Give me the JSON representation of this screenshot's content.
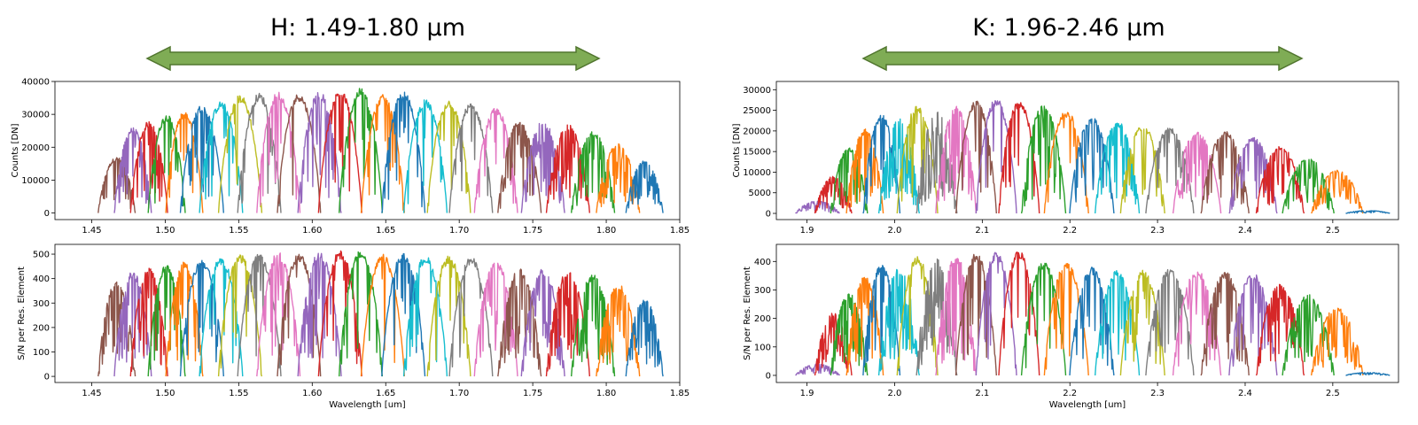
{
  "band_labels": {
    "h": "H: 1.49-1.80 µm",
    "k": "K: 1.96-2.46 µm"
  },
  "colors": {
    "arrow_fill": "#7fac55",
    "arrow_stroke": "#51762f",
    "palette": [
      "#1f77b4",
      "#ff7f0e",
      "#2ca02c",
      "#d62728",
      "#9467bd",
      "#8c564b",
      "#e377c2",
      "#7f7f7f",
      "#bcbd22",
      "#17becf"
    ]
  },
  "chart_data": [
    {
      "id": "h_counts",
      "type": "line",
      "xlabel": "",
      "ylabel": "Counts [DN]",
      "xlim": [
        1.425,
        1.85
      ],
      "ylim": [
        -2000,
        40000
      ],
      "xticks": [
        "1.45",
        "1.50",
        "1.55",
        "1.60",
        "1.65",
        "1.70",
        "1.75",
        "1.80",
        "1.85"
      ],
      "yticks": [
        "0",
        "10000",
        "20000",
        "30000",
        "40000"
      ],
      "orders": [
        {
          "center": 1.467,
          "half_width": 0.006,
          "peak": 17000,
          "color_index": 5,
          "noise": 0.35
        },
        {
          "center": 1.478,
          "half_width": 0.006,
          "peak": 26000,
          "color_index": 4,
          "noise": 0.3
        },
        {
          "center": 1.489,
          "half_width": 0.006,
          "peak": 28000,
          "color_index": 3,
          "noise": 0.25
        },
        {
          "center": 1.501,
          "half_width": 0.006,
          "peak": 30000,
          "color_index": 2,
          "noise": 0.2
        },
        {
          "center": 1.513,
          "half_width": 0.006,
          "peak": 31000,
          "color_index": 1,
          "noise": 0.2
        },
        {
          "center": 1.525,
          "half_width": 0.007,
          "peak": 33000,
          "color_index": 0,
          "noise": 0.15
        },
        {
          "center": 1.538,
          "half_width": 0.007,
          "peak": 34000,
          "color_index": 9,
          "noise": 0.12
        },
        {
          "center": 1.551,
          "half_width": 0.007,
          "peak": 36000,
          "color_index": 8,
          "noise": 0.1
        },
        {
          "center": 1.564,
          "half_width": 0.007,
          "peak": 36500,
          "color_index": 7,
          "noise": 0.1
        },
        {
          "center": 1.577,
          "half_width": 0.007,
          "peak": 37000,
          "color_index": 6,
          "noise": 0.25
        },
        {
          "center": 1.591,
          "half_width": 0.007,
          "peak": 36500,
          "color_index": 5,
          "noise": 0.1
        },
        {
          "center": 1.605,
          "half_width": 0.007,
          "peak": 37000,
          "color_index": 4,
          "noise": 0.3
        },
        {
          "center": 1.619,
          "half_width": 0.007,
          "peak": 37500,
          "color_index": 3,
          "noise": 0.1
        },
        {
          "center": 1.633,
          "half_width": 0.007,
          "peak": 38000,
          "color_index": 2,
          "noise": 0.1
        },
        {
          "center": 1.648,
          "half_width": 0.007,
          "peak": 36000,
          "color_index": 1,
          "noise": 0.12
        },
        {
          "center": 1.662,
          "half_width": 0.007,
          "peak": 37000,
          "color_index": 0,
          "noise": 0.15
        },
        {
          "center": 1.677,
          "half_width": 0.007,
          "peak": 34500,
          "color_index": 9,
          "noise": 0.12
        },
        {
          "center": 1.693,
          "half_width": 0.007,
          "peak": 34500,
          "color_index": 8,
          "noise": 0.15
        },
        {
          "center": 1.708,
          "half_width": 0.007,
          "peak": 33500,
          "color_index": 7,
          "noise": 0.15
        },
        {
          "center": 1.725,
          "half_width": 0.007,
          "peak": 32000,
          "color_index": 6,
          "noise": 0.25
        },
        {
          "center": 1.741,
          "half_width": 0.007,
          "peak": 28000,
          "color_index": 5,
          "noise": 0.35
        },
        {
          "center": 1.757,
          "half_width": 0.007,
          "peak": 28000,
          "color_index": 4,
          "noise": 0.35
        },
        {
          "center": 1.774,
          "half_width": 0.007,
          "peak": 27000,
          "color_index": 3,
          "noise": 0.4
        },
        {
          "center": 1.791,
          "half_width": 0.007,
          "peak": 25000,
          "color_index": 2,
          "noise": 0.45
        },
        {
          "center": 1.808,
          "half_width": 0.007,
          "peak": 21000,
          "color_index": 1,
          "noise": 0.5
        },
        {
          "center": 1.826,
          "half_width": 0.006,
          "peak": 16000,
          "color_index": 0,
          "noise": 0.55
        }
      ]
    },
    {
      "id": "h_snr",
      "type": "line",
      "xlabel": "Wavelength [um]",
      "ylabel": "S/N per Res. Element",
      "xlim": [
        1.425,
        1.85
      ],
      "ylim": [
        -25,
        540
      ],
      "xticks": [
        "1.45",
        "1.50",
        "1.55",
        "1.60",
        "1.65",
        "1.70",
        "1.75",
        "1.80",
        "1.85"
      ],
      "yticks": [
        "0",
        "100",
        "200",
        "300",
        "400",
        "500"
      ],
      "orders": [
        {
          "center": 1.467,
          "half_width": 0.006,
          "peak": 390,
          "color_index": 5,
          "noise": 0.35
        },
        {
          "center": 1.478,
          "half_width": 0.006,
          "peak": 430,
          "color_index": 4,
          "noise": 0.3
        },
        {
          "center": 1.489,
          "half_width": 0.006,
          "peak": 445,
          "color_index": 3,
          "noise": 0.25
        },
        {
          "center": 1.501,
          "half_width": 0.006,
          "peak": 460,
          "color_index": 2,
          "noise": 0.2
        },
        {
          "center": 1.513,
          "half_width": 0.006,
          "peak": 470,
          "color_index": 1,
          "noise": 0.2
        },
        {
          "center": 1.525,
          "half_width": 0.007,
          "peak": 480,
          "color_index": 0,
          "noise": 0.15
        },
        {
          "center": 1.538,
          "half_width": 0.007,
          "peak": 490,
          "color_index": 9,
          "noise": 0.12
        },
        {
          "center": 1.551,
          "half_width": 0.007,
          "peak": 500,
          "color_index": 8,
          "noise": 0.1
        },
        {
          "center": 1.564,
          "half_width": 0.007,
          "peak": 505,
          "color_index": 7,
          "noise": 0.1
        },
        {
          "center": 1.577,
          "half_width": 0.007,
          "peak": 510,
          "color_index": 6,
          "noise": 0.25
        },
        {
          "center": 1.591,
          "half_width": 0.007,
          "peak": 505,
          "color_index": 5,
          "noise": 0.1
        },
        {
          "center": 1.605,
          "half_width": 0.007,
          "peak": 510,
          "color_index": 4,
          "noise": 0.3
        },
        {
          "center": 1.619,
          "half_width": 0.007,
          "peak": 515,
          "color_index": 3,
          "noise": 0.1
        },
        {
          "center": 1.633,
          "half_width": 0.007,
          "peak": 515,
          "color_index": 2,
          "noise": 0.1
        },
        {
          "center": 1.648,
          "half_width": 0.007,
          "peak": 500,
          "color_index": 1,
          "noise": 0.12
        },
        {
          "center": 1.662,
          "half_width": 0.007,
          "peak": 510,
          "color_index": 0,
          "noise": 0.15
        },
        {
          "center": 1.677,
          "half_width": 0.007,
          "peak": 495,
          "color_index": 9,
          "noise": 0.12
        },
        {
          "center": 1.693,
          "half_width": 0.007,
          "peak": 495,
          "color_index": 8,
          "noise": 0.15
        },
        {
          "center": 1.708,
          "half_width": 0.007,
          "peak": 490,
          "color_index": 7,
          "noise": 0.15
        },
        {
          "center": 1.725,
          "half_width": 0.007,
          "peak": 475,
          "color_index": 6,
          "noise": 0.25
        },
        {
          "center": 1.741,
          "half_width": 0.007,
          "peak": 445,
          "color_index": 5,
          "noise": 0.35
        },
        {
          "center": 1.757,
          "half_width": 0.007,
          "peak": 440,
          "color_index": 4,
          "noise": 0.35
        },
        {
          "center": 1.774,
          "half_width": 0.007,
          "peak": 435,
          "color_index": 3,
          "noise": 0.4
        },
        {
          "center": 1.791,
          "half_width": 0.007,
          "peak": 420,
          "color_index": 2,
          "noise": 0.45
        },
        {
          "center": 1.808,
          "half_width": 0.007,
          "peak": 380,
          "color_index": 1,
          "noise": 0.5
        },
        {
          "center": 1.826,
          "half_width": 0.006,
          "peak": 320,
          "color_index": 0,
          "noise": 0.55
        }
      ]
    },
    {
      "id": "k_counts",
      "type": "line",
      "xlabel": "",
      "ylabel": "Counts [DN]",
      "xlim": [
        1.865,
        2.575
      ],
      "ylim": [
        -1500,
        32000
      ],
      "xticks": [
        "1.9",
        "2.0",
        "2.1",
        "2.2",
        "2.3",
        "2.4",
        "2.5"
      ],
      "yticks": [
        "0",
        "5000",
        "10000",
        "15000",
        "20000",
        "25000",
        "30000"
      ],
      "orders": [
        {
          "center": 1.912,
          "half_width": 0.012,
          "peak": 3000,
          "color_index": 4,
          "noise": 0.6
        },
        {
          "center": 1.93,
          "half_width": 0.01,
          "peak": 9000,
          "color_index": 3,
          "noise": 0.55
        },
        {
          "center": 1.948,
          "half_width": 0.01,
          "peak": 16000,
          "color_index": 2,
          "noise": 0.45
        },
        {
          "center": 1.966,
          "half_width": 0.01,
          "peak": 20500,
          "color_index": 1,
          "noise": 0.35
        },
        {
          "center": 1.985,
          "half_width": 0.01,
          "peak": 24000,
          "color_index": 0,
          "noise": 0.3
        },
        {
          "center": 2.005,
          "half_width": 0.011,
          "peak": 23000,
          "color_index": 9,
          "noise": 0.7
        },
        {
          "center": 2.026,
          "half_width": 0.011,
          "peak": 26500,
          "color_index": 8,
          "noise": 0.2
        },
        {
          "center": 2.048,
          "half_width": 0.011,
          "peak": 25000,
          "color_index": 7,
          "noise": 0.7
        },
        {
          "center": 2.07,
          "half_width": 0.011,
          "peak": 26000,
          "color_index": 6,
          "noise": 0.4
        },
        {
          "center": 2.093,
          "half_width": 0.011,
          "peak": 27500,
          "color_index": 5,
          "noise": 0.15
        },
        {
          "center": 2.116,
          "half_width": 0.011,
          "peak": 28000,
          "color_index": 4,
          "noise": 0.15
        },
        {
          "center": 2.142,
          "half_width": 0.011,
          "peak": 27500,
          "color_index": 3,
          "noise": 0.1
        },
        {
          "center": 2.17,
          "half_width": 0.012,
          "peak": 26500,
          "color_index": 2,
          "noise": 0.25
        },
        {
          "center": 2.196,
          "half_width": 0.012,
          "peak": 25000,
          "color_index": 1,
          "noise": 0.2
        },
        {
          "center": 2.225,
          "half_width": 0.012,
          "peak": 23500,
          "color_index": 0,
          "noise": 0.25
        },
        {
          "center": 2.254,
          "half_width": 0.012,
          "peak": 22500,
          "color_index": 9,
          "noise": 0.25
        },
        {
          "center": 2.283,
          "half_width": 0.012,
          "peak": 21500,
          "color_index": 8,
          "noise": 0.25
        },
        {
          "center": 2.314,
          "half_width": 0.013,
          "peak": 21000,
          "color_index": 7,
          "noise": 0.25
        },
        {
          "center": 2.345,
          "half_width": 0.013,
          "peak": 20000,
          "color_index": 6,
          "noise": 0.3
        },
        {
          "center": 2.377,
          "half_width": 0.013,
          "peak": 20000,
          "color_index": 5,
          "noise": 0.3
        },
        {
          "center": 2.409,
          "half_width": 0.013,
          "peak": 18500,
          "color_index": 4,
          "noise": 0.35
        },
        {
          "center": 2.44,
          "half_width": 0.013,
          "peak": 16500,
          "color_index": 3,
          "noise": 0.4
        },
        {
          "center": 2.472,
          "half_width": 0.014,
          "peak": 13500,
          "color_index": 2,
          "noise": 0.4
        },
        {
          "center": 2.505,
          "half_width": 0.014,
          "peak": 10500,
          "color_index": 1,
          "noise": 0.4
        },
        {
          "center": 2.54,
          "half_width": 0.012,
          "peak": 700,
          "color_index": 0,
          "noise": 0.5
        }
      ]
    },
    {
      "id": "k_snr",
      "type": "line",
      "xlabel": "Wavelength [um]",
      "ylabel": "S/N per Res. Element",
      "xlim": [
        1.865,
        2.575
      ],
      "ylim": [
        -25,
        460
      ],
      "xticks": [
        "1.9",
        "2.0",
        "2.1",
        "2.2",
        "2.3",
        "2.4",
        "2.5"
      ],
      "yticks": [
        "0",
        "100",
        "200",
        "300",
        "400"
      ],
      "orders": [
        {
          "center": 1.912,
          "half_width": 0.012,
          "peak": 40,
          "color_index": 4,
          "noise": 0.6
        },
        {
          "center": 1.93,
          "half_width": 0.01,
          "peak": 220,
          "color_index": 3,
          "noise": 0.55
        },
        {
          "center": 1.948,
          "half_width": 0.01,
          "peak": 290,
          "color_index": 2,
          "noise": 0.45
        },
        {
          "center": 1.966,
          "half_width": 0.01,
          "peak": 350,
          "color_index": 1,
          "noise": 0.35
        },
        {
          "center": 1.985,
          "half_width": 0.01,
          "peak": 390,
          "color_index": 0,
          "noise": 0.3
        },
        {
          "center": 2.005,
          "half_width": 0.011,
          "peak": 380,
          "color_index": 9,
          "noise": 0.7
        },
        {
          "center": 2.026,
          "half_width": 0.011,
          "peak": 420,
          "color_index": 8,
          "noise": 0.2
        },
        {
          "center": 2.048,
          "half_width": 0.011,
          "peak": 410,
          "color_index": 7,
          "noise": 0.7
        },
        {
          "center": 2.07,
          "half_width": 0.011,
          "peak": 420,
          "color_index": 6,
          "noise": 0.4
        },
        {
          "center": 2.093,
          "half_width": 0.011,
          "peak": 430,
          "color_index": 5,
          "noise": 0.15
        },
        {
          "center": 2.116,
          "half_width": 0.011,
          "peak": 435,
          "color_index": 4,
          "noise": 0.15
        },
        {
          "center": 2.142,
          "half_width": 0.011,
          "peak": 440,
          "color_index": 3,
          "noise": 0.1
        },
        {
          "center": 2.17,
          "half_width": 0.012,
          "peak": 400,
          "color_index": 2,
          "noise": 0.25
        },
        {
          "center": 2.196,
          "half_width": 0.012,
          "peak": 400,
          "color_index": 1,
          "noise": 0.2
        },
        {
          "center": 2.225,
          "half_width": 0.012,
          "peak": 380,
          "color_index": 0,
          "noise": 0.25
        },
        {
          "center": 2.254,
          "half_width": 0.012,
          "peak": 370,
          "color_index": 9,
          "noise": 0.25
        },
        {
          "center": 2.283,
          "half_width": 0.012,
          "peak": 370,
          "color_index": 8,
          "noise": 0.25
        },
        {
          "center": 2.314,
          "half_width": 0.013,
          "peak": 375,
          "color_index": 7,
          "noise": 0.25
        },
        {
          "center": 2.345,
          "half_width": 0.013,
          "peak": 370,
          "color_index": 6,
          "noise": 0.3
        },
        {
          "center": 2.377,
          "half_width": 0.013,
          "peak": 365,
          "color_index": 5,
          "noise": 0.3
        },
        {
          "center": 2.409,
          "half_width": 0.013,
          "peak": 360,
          "color_index": 4,
          "noise": 0.35
        },
        {
          "center": 2.44,
          "half_width": 0.013,
          "peak": 320,
          "color_index": 3,
          "noise": 0.4
        },
        {
          "center": 2.472,
          "half_width": 0.014,
          "peak": 285,
          "color_index": 2,
          "noise": 0.4
        },
        {
          "center": 2.505,
          "half_width": 0.014,
          "peak": 240,
          "color_index": 1,
          "noise": 0.4
        },
        {
          "center": 2.54,
          "half_width": 0.012,
          "peak": 10,
          "color_index": 0,
          "noise": 0.5
        }
      ]
    }
  ]
}
